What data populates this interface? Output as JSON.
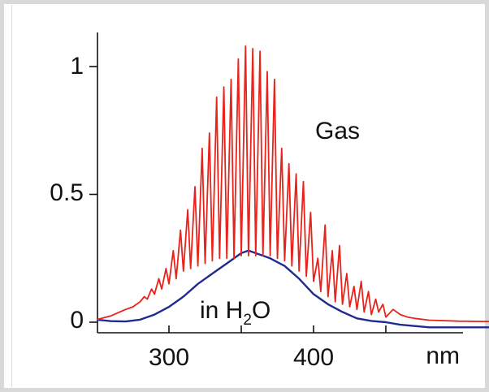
{
  "chart_data": {
    "type": "line",
    "title": "",
    "xlabel": "nm",
    "ylabel": "",
    "xlim": [
      250,
      570
    ],
    "ylim": [
      -0.03,
      1.2
    ],
    "x_ticks": [
      300,
      400
    ],
    "x_tick_labels": [
      "300",
      "400"
    ],
    "y_ticks": [
      0,
      0.5,
      1
    ],
    "y_tick_labels": [
      "0",
      "0.5",
      "1"
    ],
    "grid": false,
    "annotations": [
      {
        "text": "Gas"
      },
      {
        "text": "in H",
        "sub": "2",
        "tail": "O"
      }
    ],
    "series": [
      {
        "name": "Gas",
        "color": "#e8231b",
        "x": [
          250,
          260,
          270,
          275,
          280,
          283,
          285,
          288,
          290,
          293,
          295,
          298,
          300,
          303,
          305,
          308,
          310,
          313,
          315,
          318,
          320,
          323,
          325,
          328,
          330,
          333,
          335,
          338,
          340,
          343,
          345,
          348,
          350,
          353,
          355,
          358,
          360,
          363,
          365,
          368,
          370,
          373,
          375,
          378,
          380,
          383,
          385,
          388,
          390,
          393,
          395,
          398,
          400,
          403,
          405,
          408,
          410,
          413,
          415,
          418,
          420,
          423,
          425,
          428,
          430,
          433,
          435,
          438,
          440,
          443,
          445,
          448,
          450,
          455,
          460,
          465,
          470,
          480,
          500,
          520,
          540,
          570
        ],
        "y": [
          0.01,
          0.025,
          0.05,
          0.06,
          0.08,
          0.1,
          0.09,
          0.13,
          0.11,
          0.17,
          0.13,
          0.21,
          0.15,
          0.28,
          0.17,
          0.36,
          0.2,
          0.44,
          0.21,
          0.53,
          0.22,
          0.68,
          0.23,
          0.74,
          0.24,
          0.88,
          0.25,
          0.92,
          0.25,
          0.95,
          0.25,
          1.03,
          0.26,
          1.08,
          0.26,
          1.07,
          0.26,
          1.06,
          0.26,
          0.98,
          0.26,
          0.95,
          0.25,
          0.68,
          0.24,
          0.62,
          0.22,
          0.58,
          0.2,
          0.55,
          0.18,
          0.43,
          0.16,
          0.25,
          0.12,
          0.38,
          0.1,
          0.28,
          0.08,
          0.3,
          0.07,
          0.19,
          0.06,
          0.14,
          0.05,
          0.16,
          0.04,
          0.12,
          0.03,
          0.09,
          0.04,
          0.07,
          0.02,
          0.05,
          0.03,
          0.02,
          0.015,
          0.008,
          0.004,
          0.003,
          0.003,
          0.003
        ]
      },
      {
        "name": "in H2O",
        "color": "#1f2b8f",
        "x": [
          250,
          260,
          270,
          280,
          290,
          300,
          310,
          320,
          330,
          340,
          350,
          355,
          360,
          370,
          380,
          390,
          400,
          410,
          420,
          430,
          440,
          450,
          460,
          470,
          480,
          500,
          520,
          540,
          570
        ],
        "y": [
          0.01,
          0.004,
          0.003,
          0.01,
          0.03,
          0.06,
          0.1,
          0.15,
          0.19,
          0.23,
          0.27,
          0.28,
          0.27,
          0.25,
          0.22,
          0.17,
          0.11,
          0.07,
          0.04,
          0.015,
          0.005,
          0.0,
          -0.01,
          -0.015,
          -0.02,
          -0.02,
          -0.02,
          -0.02,
          -0.02
        ]
      }
    ]
  },
  "colors": {
    "frame": "#d9d9d9",
    "axis": "#111111",
    "gas": "#e8231b",
    "water": "#1f2b8f"
  }
}
